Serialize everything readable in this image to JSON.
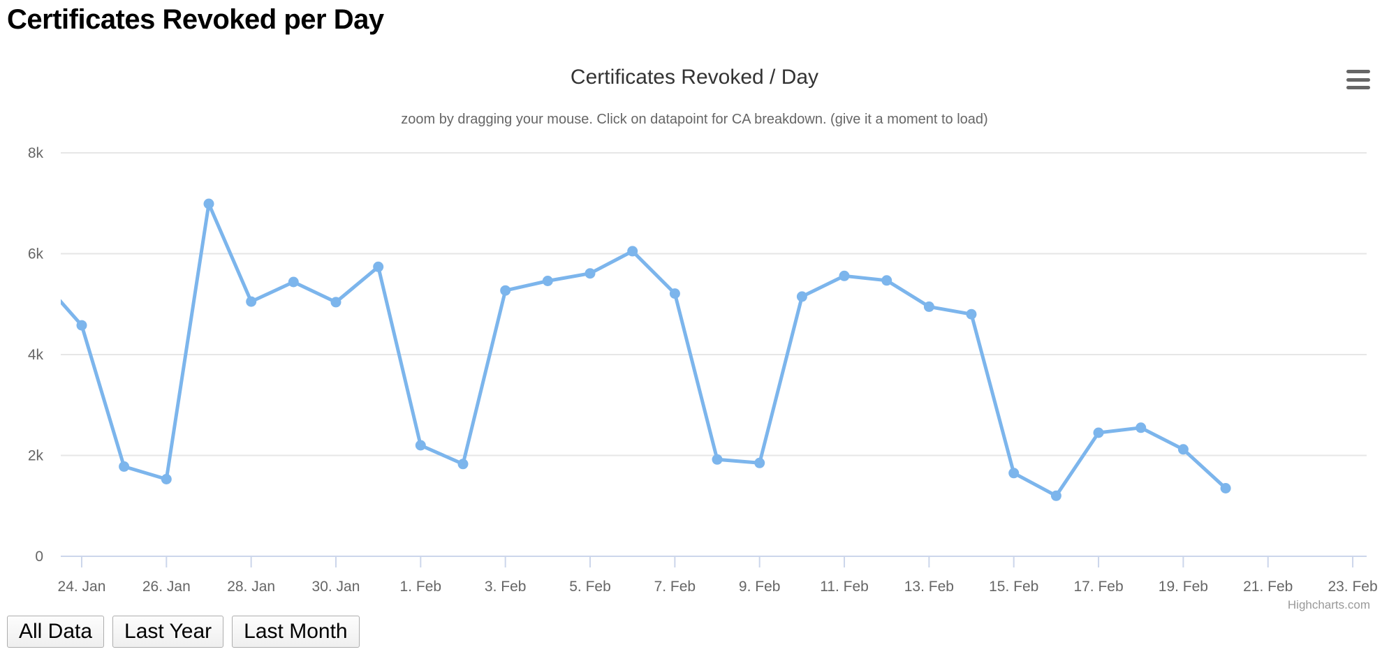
{
  "page": {
    "heading": "Certificates Revoked per Day"
  },
  "chart": {
    "title": "Certificates Revoked / Day",
    "subtitle": "zoom by dragging your mouse. Click on datapoint for CA breakdown. (give it a moment to load)",
    "credits": "Highcharts.com",
    "colors": {
      "line": "#7cb5ec",
      "marker": "#7cb5ec",
      "grid": "#e6e6e6",
      "axis": "#ccd6eb",
      "label": "#666666",
      "title": "#333333",
      "subtitle": "#666666",
      "credits": "#999999"
    }
  },
  "chart_data": {
    "type": "line",
    "title": "Certificates Revoked / Day",
    "xlabel": "",
    "ylabel": "",
    "legend": "none",
    "grid": "horizontal",
    "ylim": [
      0,
      8000
    ],
    "y_tick_labels": [
      "0",
      "2k",
      "4k",
      "6k",
      "8k"
    ],
    "y_tick_values": [
      0,
      2000,
      4000,
      6000,
      8000
    ],
    "x_tick_labels": [
      "24. Jan",
      "26. Jan",
      "28. Jan",
      "30. Jan",
      "1. Feb",
      "3. Feb",
      "5. Feb",
      "7. Feb",
      "9. Feb",
      "11. Feb",
      "13. Feb",
      "15. Feb",
      "17. Feb",
      "19. Feb",
      "21. Feb",
      "23. Feb"
    ],
    "x": [
      "23. Jan",
      "24. Jan",
      "25. Jan",
      "26. Jan",
      "27. Jan",
      "28. Jan",
      "29. Jan",
      "30. Jan",
      "31. Jan",
      "1. Feb",
      "2. Feb",
      "3. Feb",
      "4. Feb",
      "5. Feb",
      "6. Feb",
      "7. Feb",
      "8. Feb",
      "9. Feb",
      "10. Feb",
      "11. Feb",
      "12. Feb",
      "13. Feb",
      "14. Feb",
      "15. Feb",
      "16. Feb",
      "17. Feb",
      "18. Feb",
      "19. Feb",
      "20. Feb"
    ],
    "values": [
      5530,
      4580,
      1780,
      1530,
      6990,
      5050,
      5440,
      5040,
      5740,
      2200,
      1830,
      5270,
      5460,
      5610,
      6050,
      5210,
      1920,
      1850,
      5150,
      5560,
      5470,
      4950,
      4800,
      1650,
      1200,
      2450,
      2550,
      2120,
      1350
    ],
    "x_axis_note": "daily datetime axis, first point clipped at left plot edge, axis extends to 23. Feb beyond last data point (20. Feb)"
  },
  "range_buttons": [
    {
      "label": "All Data"
    },
    {
      "label": "Last Year"
    },
    {
      "label": "Last Month"
    }
  ]
}
